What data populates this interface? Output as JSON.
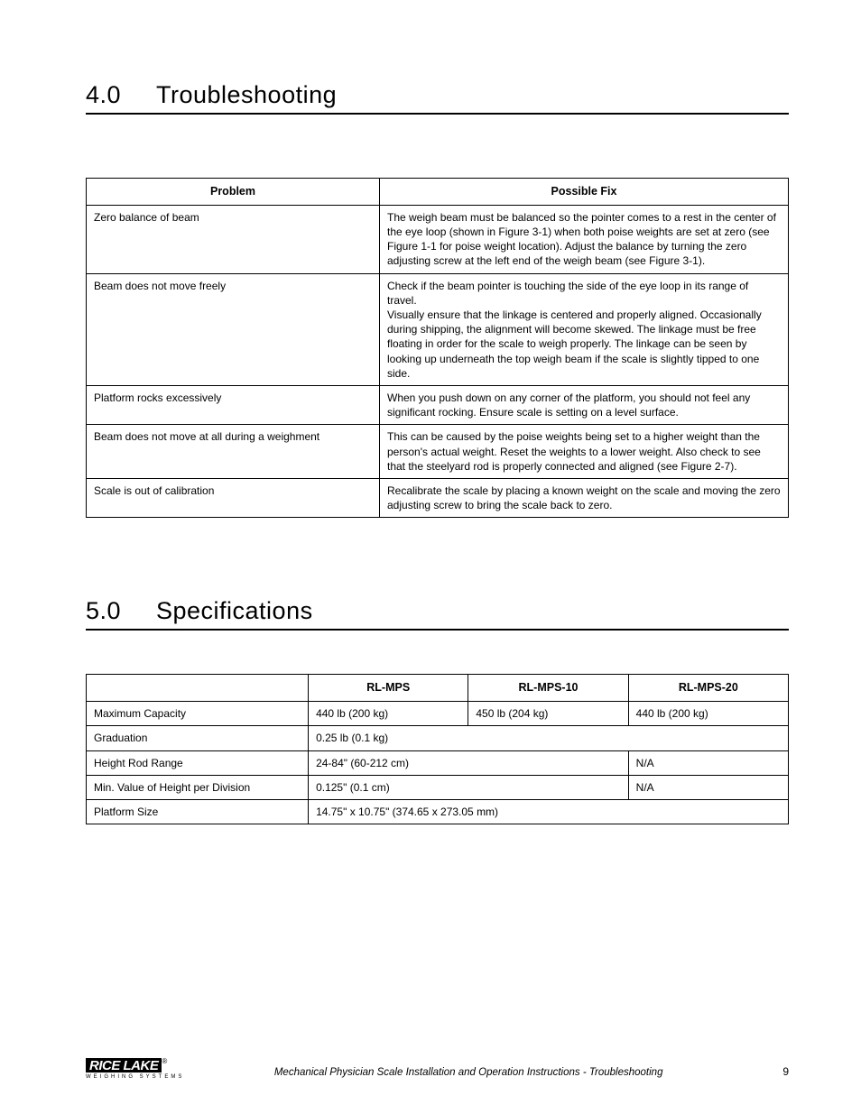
{
  "sections": {
    "troubleshooting": {
      "num": "4.0",
      "title": "Troubleshooting"
    },
    "specifications": {
      "num": "5.0",
      "title": "Specifications"
    }
  },
  "troubleshooting_table": {
    "headers": {
      "problem": "Problem",
      "fix": "Possible Fix"
    },
    "rows": [
      {
        "problem": "Zero balance of beam",
        "fix": "The weigh beam must be balanced so the pointer comes to a rest in the center of the eye loop (shown in Figure 3-1) when both poise weights are set at zero (see Figure 1-1 for poise weight location). Adjust the balance by turning the zero adjusting screw at the left end of the weigh beam (see Figure 3-1)."
      },
      {
        "problem": "Beam does not move freely",
        "fix": "Check if the beam pointer is touching the side of the eye loop in its range of travel.\nVisually ensure that the linkage is centered and properly aligned. Occasionally during shipping, the alignment will become skewed. The linkage must be free floating in order for the scale to weigh properly. The linkage can be seen by looking up underneath the top weigh beam if the scale is slightly tipped to one side."
      },
      {
        "problem": "Platform rocks excessively",
        "fix": "When you push down on any corner of the platform, you should not feel any significant rocking. Ensure scale is setting on a level surface."
      },
      {
        "problem": "Beam does not move at all during a weighment",
        "fix": "This can be caused by the poise weights being set to a higher weight than the person's actual weight. Reset the weights to a lower weight. Also check to see that the steelyard rod is properly connected and aligned (see Figure 2-7)."
      },
      {
        "problem": "Scale is out of calibration",
        "fix": "Recalibrate the scale by placing a known weight on the scale and moving the zero adjusting screw to bring the scale back to zero."
      }
    ]
  },
  "specs_table": {
    "headers": {
      "blank": "",
      "c1": "RL-MPS",
      "c2": "RL-MPS-10",
      "c3": "RL-MPS-20"
    },
    "rows": [
      {
        "label": "Maximum Capacity",
        "cells": [
          "440 lb (200 kg)",
          "450 lb (204 kg)",
          "440 lb (200 kg)"
        ],
        "spans": [
          1,
          1,
          1
        ]
      },
      {
        "label": "Graduation",
        "cells": [
          "0.25 lb (0.1 kg)"
        ],
        "spans": [
          3
        ]
      },
      {
        "label": "Height Rod Range",
        "cells": [
          "24-84\" (60-212 cm)",
          "N/A"
        ],
        "spans": [
          2,
          1
        ]
      },
      {
        "label": "Min. Value of Height per Division",
        "cells": [
          "0.125\" (0.1 cm)",
          "N/A"
        ],
        "spans": [
          2,
          1
        ]
      },
      {
        "label": "Platform Size",
        "cells": [
          "14.75\" x 10.75\" (374.65 x 273.05 mm)"
        ],
        "spans": [
          3
        ]
      }
    ]
  },
  "footer": {
    "logo_main": "RICE LAKE",
    "logo_sub": "WEIGHING SYSTEMS",
    "line": "Mechanical Physician Scale Installation and Operation Instructions - Troubleshooting",
    "page": "9"
  },
  "styling": {
    "page_bg": "#ffffff",
    "text_color": "#000000",
    "table_border": "#000000",
    "heading_font": "Impact",
    "body_font": "Arial",
    "heading_size_pt": 20,
    "body_size_pt": 9
  }
}
